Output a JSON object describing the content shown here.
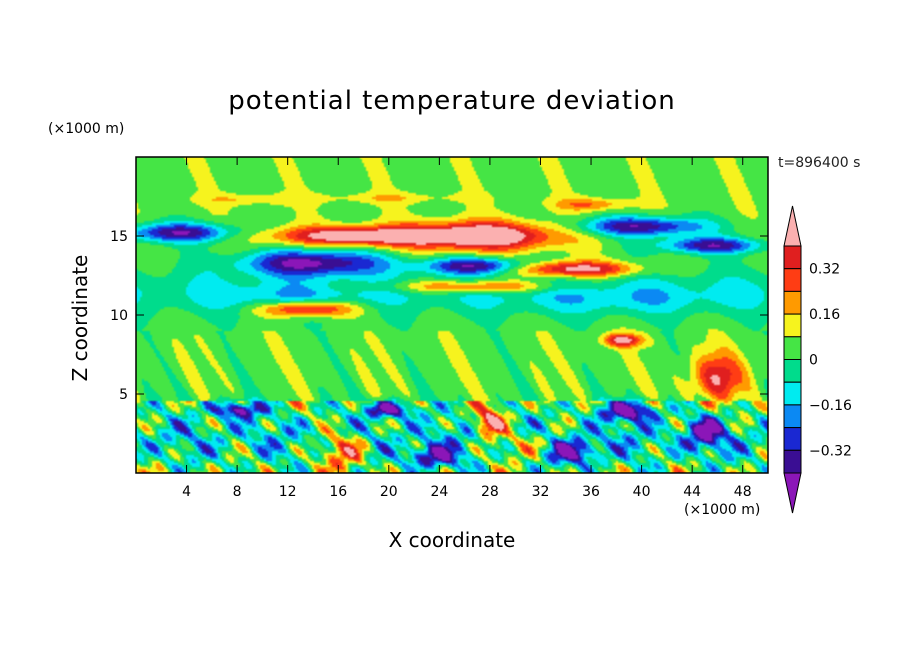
{
  "chart_data": {
    "type": "heatmap",
    "title": "potential temperature deviation",
    "xlabel": "X coordinate",
    "ylabel": "Z coordinate",
    "x_unit": "(×1000 m)",
    "y_unit": "(×1000 m)",
    "time_label": "t=896400 s",
    "xlim": [
      0,
      50
    ],
    "ylim": [
      0,
      20
    ],
    "x_ticks": [
      4,
      8,
      12,
      16,
      20,
      24,
      28,
      32,
      36,
      40,
      44,
      48
    ],
    "y_ticks": [
      5,
      10,
      15
    ],
    "colorbar": {
      "tick_labels": [
        "0.32",
        "0.16",
        "0",
        "−0.16",
        "−0.32"
      ],
      "tick_values": [
        0.32,
        0.16,
        0,
        -0.16,
        -0.32
      ],
      "levels": [
        -0.4,
        -0.32,
        -0.24,
        -0.16,
        -0.08,
        0,
        0.08,
        0.16,
        0.24,
        0.32,
        0.4
      ],
      "colors": [
        "#8b16b8",
        "#3a0e93",
        "#1a28d2",
        "#0b89f3",
        "#00ebf0",
        "#00dc8c",
        "#45e545",
        "#f6f31e",
        "#ff9a00",
        "#ff3d14",
        "#e01f1f",
        "#fbb0b0"
      ]
    },
    "features": [
      {
        "x": 18,
        "z": 15.0,
        "sx": 7.5,
        "sz": 0.6,
        "v": 0.46
      },
      {
        "x": 27.5,
        "z": 15.0,
        "sx": 6.0,
        "sz": 0.9,
        "v": 0.48
      },
      {
        "x": 34.5,
        "z": 12.9,
        "sx": 5.0,
        "sz": 0.5,
        "v": 0.46
      },
      {
        "x": 27.0,
        "z": 11.8,
        "sx": 6.5,
        "sz": 0.4,
        "v": 0.3
      },
      {
        "x": 13.5,
        "z": 10.4,
        "sx": 3.8,
        "sz": 0.5,
        "v": 0.44
      },
      {
        "x": 3.5,
        "z": 15.2,
        "sx": 4.5,
        "sz": 0.6,
        "v": -0.44
      },
      {
        "x": 14.0,
        "z": 13.3,
        "sx": 5.5,
        "sz": 0.8,
        "v": -0.46
      },
      {
        "x": 27.0,
        "z": 13.1,
        "sx": 4.0,
        "sz": 0.5,
        "v": -0.42
      },
      {
        "x": 40.0,
        "z": 15.6,
        "sx": 5.0,
        "sz": 0.6,
        "v": -0.44
      },
      {
        "x": 45.5,
        "z": 14.4,
        "sx": 4.0,
        "sz": 0.5,
        "v": -0.42
      },
      {
        "x": 20.0,
        "z": 17.4,
        "sx": 6.0,
        "sz": 0.35,
        "v": 0.1
      },
      {
        "x": 9.0,
        "z": 17.3,
        "sx": 4.0,
        "sz": 0.35,
        "v": 0.12
      },
      {
        "x": 36.0,
        "z": 17.0,
        "sx": 3.0,
        "sz": 0.4,
        "v": 0.2
      },
      {
        "x": 12.0,
        "z": 11.0,
        "sx": 6.0,
        "sz": 0.9,
        "v": -0.12
      },
      {
        "x": 38.0,
        "z": 11.0,
        "sx": 9.0,
        "sz": 1.0,
        "v": -0.1
      },
      {
        "x": 28.0,
        "z": 3.2,
        "sx": 1.2,
        "sz": 0.9,
        "v": 0.46
      },
      {
        "x": 46.0,
        "z": 6.0,
        "sx": 2.0,
        "sz": 1.5,
        "v": 0.34
      },
      {
        "x": 38.5,
        "z": 8.4,
        "sx": 1.5,
        "sz": 0.4,
        "v": 0.4
      },
      {
        "x": 16.5,
        "z": 1.5,
        "sx": 1.8,
        "sz": 1.2,
        "v": 0.36
      },
      {
        "x": 31.0,
        "z": 1.8,
        "sx": 2.5,
        "sz": 1.0,
        "v": 0.22
      },
      {
        "x": 8.0,
        "z": 4.0,
        "sx": 2.0,
        "sz": 0.5,
        "v": -0.44
      },
      {
        "x": 20.0,
        "z": 4.0,
        "sx": 1.8,
        "sz": 0.5,
        "v": -0.46
      },
      {
        "x": 39.0,
        "z": 3.9,
        "sx": 2.2,
        "sz": 0.6,
        "v": -0.46
      },
      {
        "x": 23.5,
        "z": 1.0,
        "sx": 2.0,
        "sz": 0.7,
        "v": -0.38
      },
      {
        "x": 34.5,
        "z": 1.3,
        "sx": 2.0,
        "sz": 0.8,
        "v": -0.4
      },
      {
        "x": 45.0,
        "z": 2.5,
        "sx": 1.5,
        "sz": 1.0,
        "v": -0.34
      }
    ]
  }
}
